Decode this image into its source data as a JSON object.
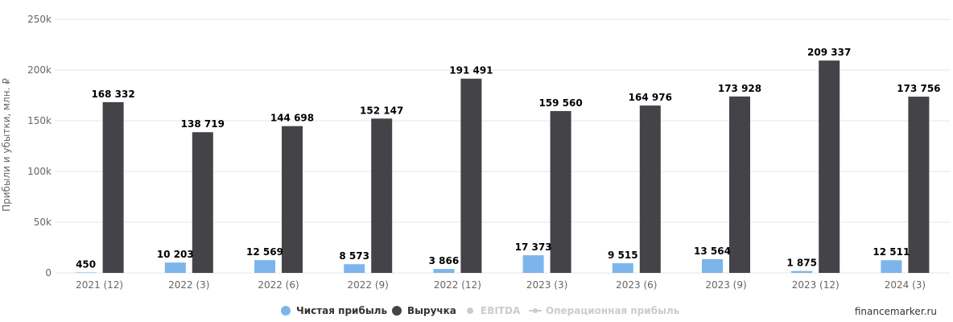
{
  "chart_data": {
    "type": "bar",
    "categories": [
      "2021 (12)",
      "2022 (3)",
      "2022 (6)",
      "2022 (9)",
      "2022 (12)",
      "2023 (3)",
      "2023 (6)",
      "2023 (9)",
      "2023 (12)",
      "2024 (3)"
    ],
    "series": [
      {
        "name": "Чистая прибыль",
        "color": "#7cb5ec",
        "values": [
          450,
          10203,
          12569,
          8573,
          3866,
          17373,
          9515,
          13564,
          1875,
          12511
        ],
        "labels": [
          "450",
          "10 203",
          "12 569",
          "8 573",
          "3 866",
          "17 373",
          "9 515",
          "13 564",
          "1 875",
          "12 511"
        ]
      },
      {
        "name": "Выручка",
        "color": "#434348",
        "values": [
          168332,
          138719,
          144698,
          152147,
          191491,
          159560,
          164976,
          173928,
          209337,
          173756
        ],
        "labels": [
          "168 332",
          "138 719",
          "144 698",
          "152 147",
          "191 491",
          "159 560",
          "164 976",
          "173 928",
          "209 337",
          "173 756"
        ]
      }
    ],
    "ylabel": "Прибыли и убытки, млн. ₽",
    "ylim": [
      0,
      250000
    ],
    "yticks": [
      0,
      50000,
      100000,
      150000,
      200000,
      250000
    ],
    "ytick_labels": [
      "0",
      "50k",
      "100k",
      "150k",
      "200k",
      "250k"
    ],
    "grid": true,
    "legend_position": "bottom-center",
    "legend": [
      {
        "name": "Чистая прибыль",
        "color": "#7cb5ec",
        "marker": "dot",
        "active": true
      },
      {
        "name": "Выручка",
        "color": "#434348",
        "marker": "dot",
        "active": true
      },
      {
        "name": "EBITDA",
        "color": "#cccccc",
        "marker": "dot",
        "active": false
      },
      {
        "name": "Операционная прибыль",
        "color": "#cccccc",
        "marker": "line-dot",
        "active": false
      }
    ]
  },
  "credit": "financemarker.ru"
}
